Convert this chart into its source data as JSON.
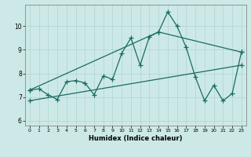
{
  "xlabel": "Humidex (Indice chaleur)",
  "background_color": "#cce9e7",
  "grid_color": "#aed4d1",
  "line_color": "#1a6b63",
  "xlim": [
    -0.5,
    23.5
  ],
  "ylim": [
    5.8,
    10.9
  ],
  "yticks": [
    6,
    7,
    8,
    9,
    10
  ],
  "xticks": [
    0,
    1,
    2,
    3,
    4,
    5,
    6,
    7,
    8,
    9,
    10,
    11,
    12,
    13,
    14,
    15,
    16,
    17,
    18,
    19,
    20,
    21,
    22,
    23
  ],
  "series1_x": [
    0,
    1,
    2,
    3,
    4,
    5,
    6,
    7,
    8,
    9,
    10,
    11,
    12,
    13,
    14,
    15,
    16,
    17,
    18,
    19,
    20,
    21,
    22,
    23
  ],
  "series1_y": [
    7.3,
    7.35,
    7.1,
    6.9,
    7.65,
    7.7,
    7.6,
    7.1,
    7.9,
    7.75,
    8.85,
    9.5,
    8.35,
    9.55,
    9.75,
    10.6,
    10.0,
    9.1,
    7.85,
    6.85,
    7.5,
    6.85,
    7.15,
    8.9
  ],
  "series2_x": [
    0,
    23
  ],
  "series2_y": [
    6.85,
    8.35
  ],
  "series3_x": [
    0,
    14,
    23
  ],
  "series3_y": [
    7.3,
    9.75,
    8.9
  ],
  "marker": "+",
  "markersize": 4,
  "linewidth": 0.9
}
